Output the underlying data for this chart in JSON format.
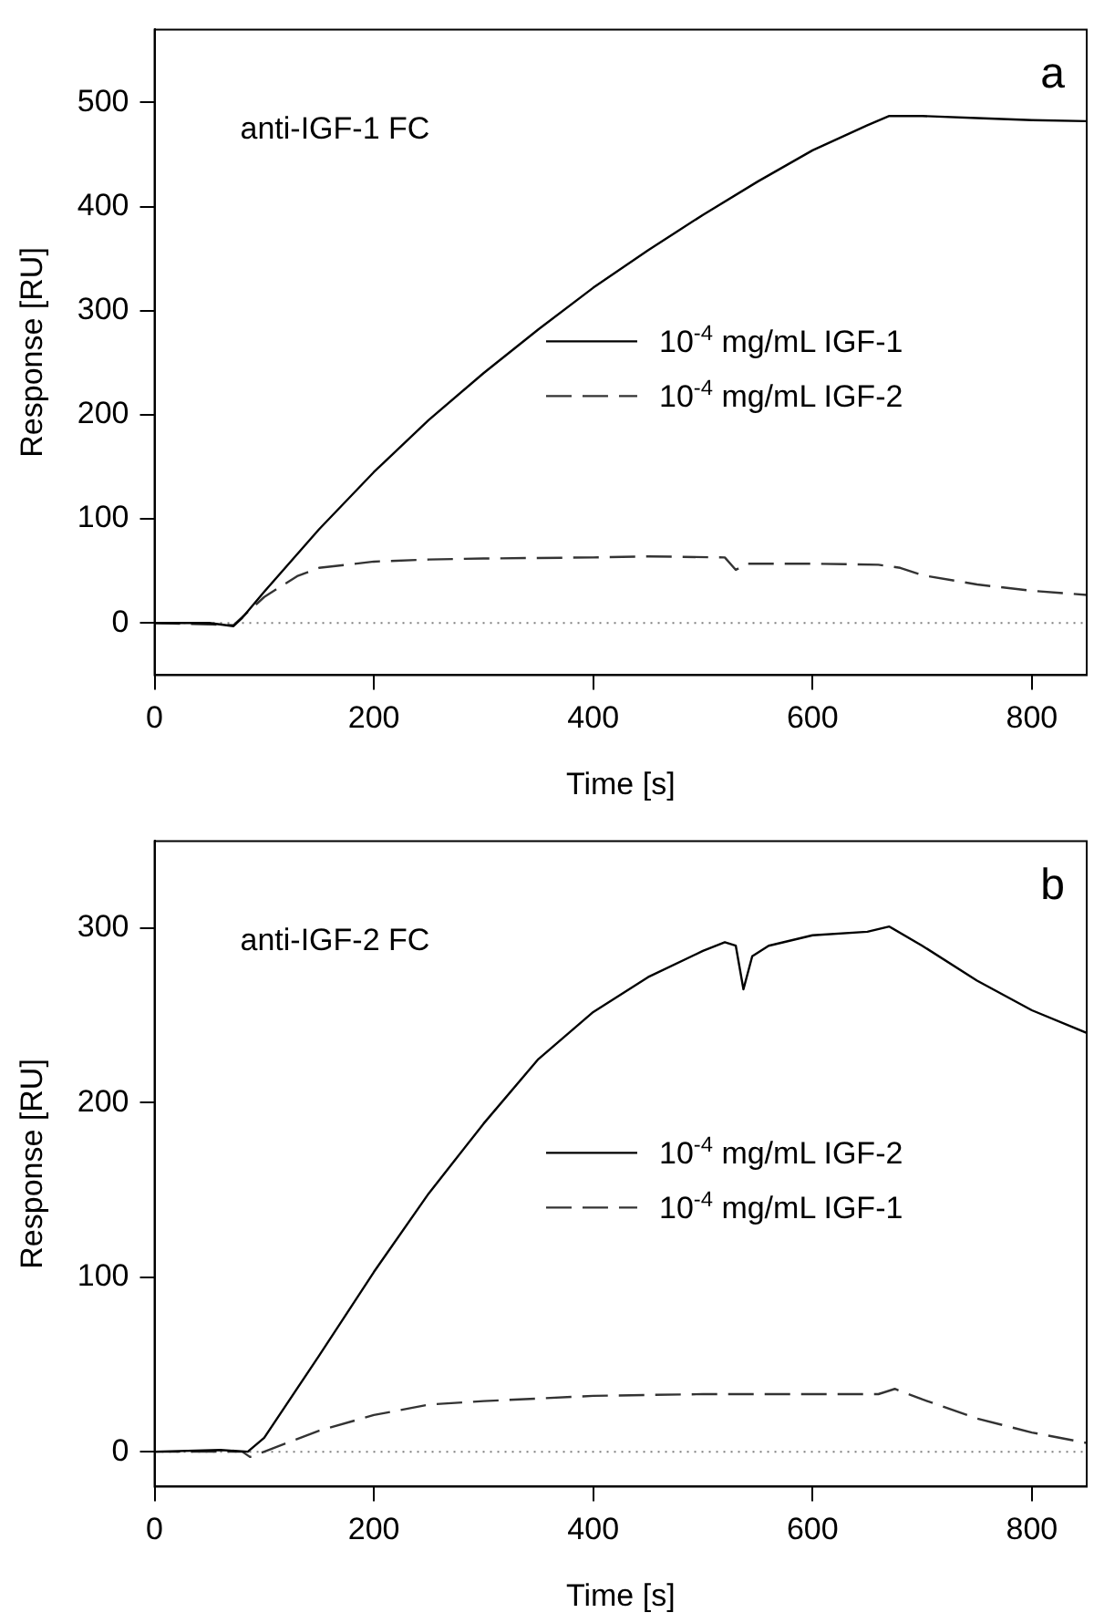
{
  "chart_data": [
    {
      "type": "line",
      "annotations": [
        "anti-IGF-1 FC",
        "a"
      ],
      "xlabel": "Time [s]",
      "ylabel": "Response [RU]",
      "xlim": [
        0,
        850
      ],
      "xticks": [
        0,
        200,
        400,
        600,
        800
      ],
      "ylim": [
        -50,
        570
      ],
      "yticks": [
        0,
        100,
        200,
        300,
        400,
        500
      ],
      "grid": false,
      "legend": "right",
      "marker": "none",
      "ref_lines": [
        {
          "axis": "y",
          "value": 0,
          "color": "#808080",
          "line_style": "dotted"
        }
      ],
      "series": [
        {
          "name": "10$^{-4}$ mg/mL IGF-1",
          "color": "#000000",
          "line_style": "solid",
          "x": [
            0,
            50,
            72,
            80,
            100,
            150,
            200,
            250,
            300,
            350,
            400,
            450,
            500,
            550,
            600,
            650,
            670,
            700,
            750,
            800,
            850
          ],
          "values": [
            0,
            0,
            -3,
            5,
            30,
            90,
            145,
            195,
            240,
            282,
            322,
            358,
            392,
            424,
            454,
            478,
            487,
            487,
            485,
            483,
            482
          ]
        },
        {
          "name": "10$^{-4}$ mg/mL IGF-2",
          "color": "#333333",
          "line_style": "dashed",
          "x": [
            0,
            72,
            100,
            130,
            150,
            200,
            250,
            300,
            400,
            450,
            520,
            530,
            540,
            600,
            660,
            680,
            700,
            750,
            800,
            850
          ],
          "values": [
            0,
            -2,
            25,
            45,
            53,
            59,
            61,
            62,
            63,
            64,
            63,
            51,
            57,
            57,
            56,
            53,
            46,
            37,
            31,
            27
          ]
        }
      ]
    },
    {
      "type": "line",
      "annotations": [
        "anti-IGF-2 FC",
        "b"
      ],
      "xlabel": "Time [s]",
      "ylabel": "Response [RU]",
      "xlim": [
        0,
        850
      ],
      "xticks": [
        0,
        200,
        400,
        600,
        800
      ],
      "ylim": [
        -20,
        350
      ],
      "yticks": [
        0,
        100,
        200,
        300
      ],
      "grid": false,
      "legend": "right",
      "marker": "none",
      "ref_lines": [
        {
          "axis": "y",
          "value": 0,
          "color": "#808080",
          "line_style": "dotted"
        }
      ],
      "series": [
        {
          "name": "10$^{-4}$ mg/mL IGF-2",
          "color": "#000000",
          "line_style": "solid",
          "x": [
            0,
            60,
            85,
            100,
            150,
            200,
            250,
            300,
            350,
            400,
            450,
            500,
            520,
            530,
            537,
            545,
            560,
            600,
            650,
            670,
            700,
            750,
            800,
            850
          ],
          "values": [
            0,
            1,
            0,
            8,
            55,
            103,
            148,
            188,
            225,
            252,
            272,
            287,
            292,
            290,
            265,
            284,
            290,
            296,
            298,
            301,
            290,
            270,
            253,
            240
          ]
        },
        {
          "name": "10$^{-4}$ mg/mL IGF-1",
          "color": "#333333",
          "line_style": "dashed",
          "x": [
            0,
            80,
            87,
            100,
            150,
            200,
            250,
            300,
            400,
            500,
            600,
            660,
            675,
            700,
            750,
            800,
            850
          ],
          "values": [
            0,
            0,
            -3,
            0,
            12,
            21,
            27,
            29,
            32,
            33,
            33,
            33,
            36,
            30,
            19,
            11,
            5
          ]
        }
      ]
    }
  ]
}
